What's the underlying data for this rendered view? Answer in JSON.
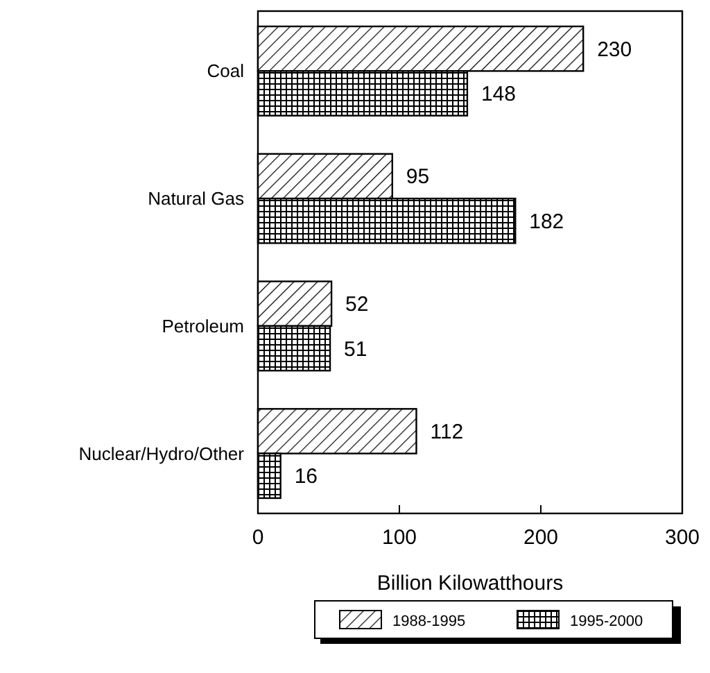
{
  "chart_data": {
    "type": "bar",
    "orientation": "horizontal",
    "xlabel": "Billion Kilowatthours",
    "categories": [
      "Coal",
      "Natural Gas",
      "Petroleum",
      "Nuclear/Hydro/Other"
    ],
    "series": [
      {
        "name": "1988-1995",
        "color": "#000000",
        "values": [
          230,
          95,
          52,
          112
        ]
      },
      {
        "name": "1995-2000",
        "color": "#000000",
        "values": [
          148,
          182,
          51,
          16
        ]
      }
    ],
    "xlim": [
      0,
      300
    ],
    "xticks": [
      0,
      100,
      200,
      300
    ],
    "data_labels": true,
    "legend": "bottom"
  }
}
